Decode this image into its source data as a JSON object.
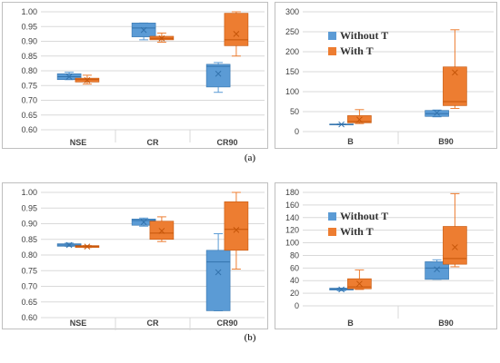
{
  "colors": {
    "without": "#5b9bd5",
    "with": "#ed7d31"
  },
  "captions": [
    "(a)",
    "(b)"
  ],
  "chart_data": [
    {
      "type": "boxplot",
      "figure": "(a)",
      "panel": "left",
      "categories": [
        "NSE",
        "CR",
        "CR90"
      ],
      "ylim": [
        0.6,
        1.0
      ],
      "yticks": [
        "0.60",
        "0.65",
        "0.70",
        "0.75",
        "0.80",
        "0.85",
        "0.90",
        "0.95",
        "1.00"
      ],
      "series": [
        {
          "name": "Without T",
          "color": "#5b9bd5",
          "boxes": [
            {
              "min": 0.77,
              "q1": 0.77,
              "median": 0.78,
              "q3": 0.79,
              "max": 0.795,
              "mean": 0.78
            },
            {
              "min": 0.905,
              "q1": 0.915,
              "median": 0.945,
              "q3": 0.962,
              "max": 0.962,
              "mean": 0.938
            },
            {
              "min": 0.727,
              "q1": 0.745,
              "median": 0.815,
              "q3": 0.822,
              "max": 0.828,
              "mean": 0.79
            }
          ]
        },
        {
          "name": "With T",
          "color": "#ed7d31",
          "boxes": [
            {
              "min": 0.755,
              "q1": 0.762,
              "median": 0.77,
              "q3": 0.775,
              "max": 0.785,
              "mean": 0.768
            },
            {
              "min": 0.897,
              "q1": 0.905,
              "median": 0.91,
              "q3": 0.917,
              "max": 0.928,
              "mean": 0.91
            },
            {
              "min": 0.85,
              "q1": 0.885,
              "median": 0.905,
              "q3": 0.995,
              "max": 1.0,
              "mean": 0.925
            }
          ]
        }
      ]
    },
    {
      "type": "boxplot",
      "figure": "(a)",
      "panel": "right",
      "categories": [
        "B",
        "B90"
      ],
      "ylim": [
        0,
        300
      ],
      "yticks": [
        "0",
        "50",
        "100",
        "150",
        "200",
        "250",
        "300"
      ],
      "legend": [
        "Without T",
        "With T"
      ],
      "series": [
        {
          "name": "Without T",
          "color": "#5b9bd5",
          "boxes": [
            {
              "min": 17,
              "q1": 17,
              "median": 18,
              "q3": 19,
              "max": 19,
              "mean": 18
            },
            {
              "min": 37,
              "q1": 38,
              "median": 45,
              "q3": 53,
              "max": 54,
              "mean": 47
            }
          ]
        },
        {
          "name": "With T",
          "color": "#ed7d31",
          "boxes": [
            {
              "min": 20,
              "q1": 22,
              "median": 25,
              "q3": 40,
              "max": 55,
              "mean": 30
            },
            {
              "min": 58,
              "q1": 65,
              "median": 75,
              "q3": 162,
              "max": 255,
              "mean": 148
            }
          ]
        }
      ]
    },
    {
      "type": "boxplot",
      "figure": "(b)",
      "panel": "left",
      "categories": [
        "NSE",
        "CR",
        "CR90"
      ],
      "ylim": [
        0.6,
        1.0
      ],
      "yticks": [
        "0.60",
        "0.65",
        "0.70",
        "0.75",
        "0.80",
        "0.85",
        "0.90",
        "0.95",
        "1.00"
      ],
      "series": [
        {
          "name": "Without T",
          "color": "#5b9bd5",
          "boxes": [
            {
              "min": 0.828,
              "q1": 0.828,
              "median": 0.832,
              "q3": 0.836,
              "max": 0.838,
              "mean": 0.832
            },
            {
              "min": 0.892,
              "q1": 0.895,
              "median": 0.91,
              "q3": 0.915,
              "max": 0.918,
              "mean": 0.905
            },
            {
              "min": 0.622,
              "q1": 0.622,
              "median": 0.778,
              "q3": 0.815,
              "max": 0.868,
              "mean": 0.745
            }
          ]
        },
        {
          "name": "With T",
          "color": "#ed7d31",
          "boxes": [
            {
              "min": 0.824,
              "q1": 0.824,
              "median": 0.827,
              "q3": 0.83,
              "max": 0.83,
              "mean": 0.827
            },
            {
              "min": 0.843,
              "q1": 0.85,
              "median": 0.87,
              "q3": 0.908,
              "max": 0.922,
              "mean": 0.877
            },
            {
              "min": 0.755,
              "q1": 0.815,
              "median": 0.882,
              "q3": 0.97,
              "max": 1.0,
              "mean": 0.88
            }
          ]
        }
      ]
    },
    {
      "type": "boxplot",
      "figure": "(b)",
      "panel": "right",
      "categories": [
        "B",
        "B90"
      ],
      "ylim": [
        0,
        180
      ],
      "yticks": [
        "0",
        "20",
        "40",
        "60",
        "80",
        "100",
        "120",
        "140",
        "160",
        "180"
      ],
      "legend": [
        "Without T",
        "With T"
      ],
      "series": [
        {
          "name": "Without T",
          "color": "#5b9bd5",
          "boxes": [
            {
              "min": 24,
              "q1": 25,
              "median": 27,
              "q3": 28,
              "max": 28,
              "mean": 26
            },
            {
              "min": 42,
              "q1": 42,
              "median": 60,
              "q3": 70,
              "max": 73,
              "mean": 58
            }
          ]
        },
        {
          "name": "With T",
          "color": "#ed7d31",
          "boxes": [
            {
              "min": 26,
              "q1": 27,
              "median": 30,
              "q3": 43,
              "max": 57,
              "mean": 35
            },
            {
              "min": 62,
              "q1": 66,
              "median": 75,
              "q3": 126,
              "max": 178,
              "mean": 93
            }
          ]
        }
      ]
    }
  ]
}
